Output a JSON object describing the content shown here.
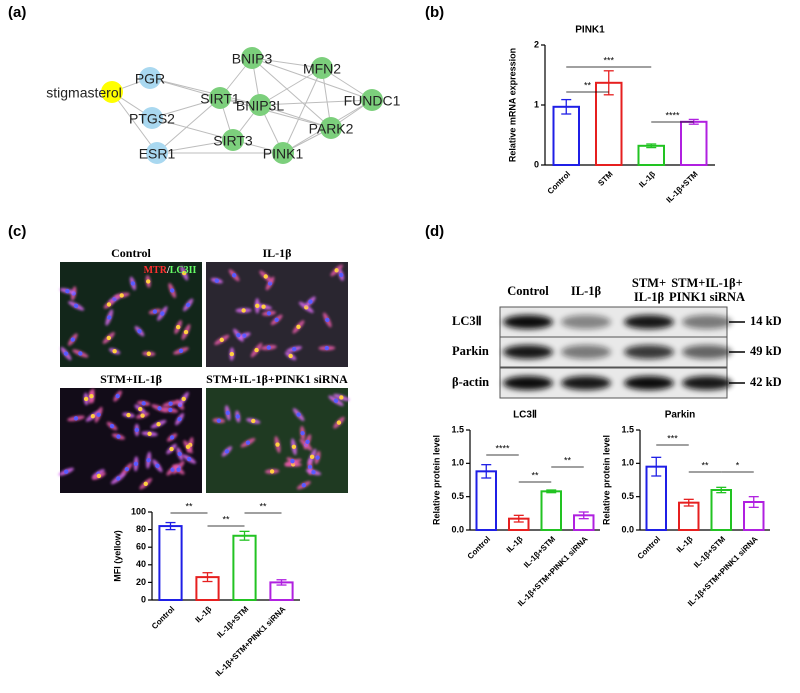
{
  "panel_labels": [
    "(a)",
    "(b)",
    "(c)",
    "(d)"
  ],
  "network": {
    "nodes": [
      {
        "label": "stigmasterol",
        "color": "#ffff00"
      },
      {
        "label": "PGR",
        "color": "#a9d8f0"
      },
      {
        "label": "PTGS2",
        "color": "#a9d8f0"
      },
      {
        "label": "ESR1",
        "color": "#a9d8f0"
      },
      {
        "label": "SIRT1",
        "color": "#7ccf7c"
      },
      {
        "label": "BNIP3",
        "color": "#7ccf7c"
      },
      {
        "label": "MFN2",
        "color": "#7ccf7c"
      },
      {
        "label": "BNIP3L",
        "color": "#7ccf7c"
      },
      {
        "label": "FUNDC1",
        "color": "#7ccf7c"
      },
      {
        "label": "SIRT3",
        "color": "#7ccf7c"
      },
      {
        "label": "PARK2",
        "color": "#7ccf7c"
      },
      {
        "label": "PINK1",
        "color": "#7ccf7c"
      }
    ]
  },
  "microscopy": {
    "panels": [
      "Control",
      "IL-1β",
      "STM+IL-1β",
      "STM+IL-1β+PINK1 siRNA"
    ],
    "stain": [
      "MTR",
      "/",
      "LC3II"
    ]
  },
  "blot": {
    "lanes": [
      [
        "Control"
      ],
      [
        "IL-1β"
      ],
      [
        "STM+",
        "IL-1β"
      ],
      [
        "STM+IL-1β+",
        "PINK1 siRNA"
      ]
    ],
    "rows": [
      {
        "label": "LC3Ⅱ",
        "size": "14 kD"
      },
      {
        "label": "Parkin",
        "size": "49 kD"
      },
      {
        "label": "β-actin",
        "size": "42 kD"
      }
    ]
  },
  "chart_data": [
    {
      "type": "bar",
      "title": "PINK1",
      "y_label": "Relative mRNA expression",
      "categories": [
        "Control",
        "STM",
        "IL-1β",
        "IL-1β+STM"
      ],
      "values": [
        0.97,
        1.37,
        0.32,
        0.72
      ],
      "errors": [
        0.12,
        0.2,
        0.03,
        0.04
      ],
      "colors": [
        "#1f1fe6",
        "#e61f1f",
        "#22c322",
        "#b020e0"
      ],
      "ylim": [
        0,
        2
      ],
      "yticks": [
        0,
        1,
        2
      ],
      "annotations": [
        "**",
        "***",
        "****"
      ]
    },
    {
      "type": "bar",
      "y_label": "MFI (yellow)",
      "categories": [
        "Control",
        "IL-1β",
        "IL-1β+STM",
        "IL-1β+STM+PINK1 siRNA"
      ],
      "values": [
        84,
        26,
        73,
        20
      ],
      "errors": [
        4,
        5,
        5,
        3
      ],
      "colors": [
        "#1f1fe6",
        "#e61f1f",
        "#22c322",
        "#b020e0"
      ],
      "ylim": [
        0,
        100
      ],
      "yticks": [
        0,
        20,
        40,
        60,
        80,
        100
      ],
      "annotations": [
        "**",
        "**",
        "**"
      ]
    },
    {
      "type": "bar",
      "title": "LC3Ⅱ",
      "y_label": "Relative protein level",
      "categories": [
        "Control",
        "IL-1β",
        "IL-1β+STM",
        "IL-1β+STM+PINK1 siRNA"
      ],
      "values": [
        0.88,
        0.17,
        0.58,
        0.22
      ],
      "errors": [
        0.1,
        0.05,
        0.02,
        0.05
      ],
      "colors": [
        "#1f1fe6",
        "#e61f1f",
        "#22c322",
        "#b020e0"
      ],
      "ylim": [
        0,
        1.5
      ],
      "yticks": [
        {
          "value": 0,
          "label": "0.0"
        },
        0.5,
        {
          "value": 1,
          "label": "1.0"
        },
        1.5
      ],
      "annotations": [
        "****",
        "**",
        "**"
      ]
    },
    {
      "type": "bar",
      "title": "Parkin",
      "y_label": "Relative protein level",
      "categories": [
        "Control",
        "IL-1β",
        "IL-1β+STM",
        "IL-1β+STM+PINK1 siRNA"
      ],
      "values": [
        0.95,
        0.41,
        0.6,
        0.42
      ],
      "errors": [
        0.14,
        0.05,
        0.04,
        0.08
      ],
      "colors": [
        "#1f1fe6",
        "#e61f1f",
        "#22c322",
        "#b020e0"
      ],
      "ylim": [
        0,
        1.5
      ],
      "yticks": [
        {
          "value": 0,
          "label": "0.0"
        },
        0.5,
        {
          "value": 1,
          "label": "1.0"
        },
        1.5
      ],
      "annotations": [
        "***",
        "**",
        "*"
      ]
    }
  ]
}
